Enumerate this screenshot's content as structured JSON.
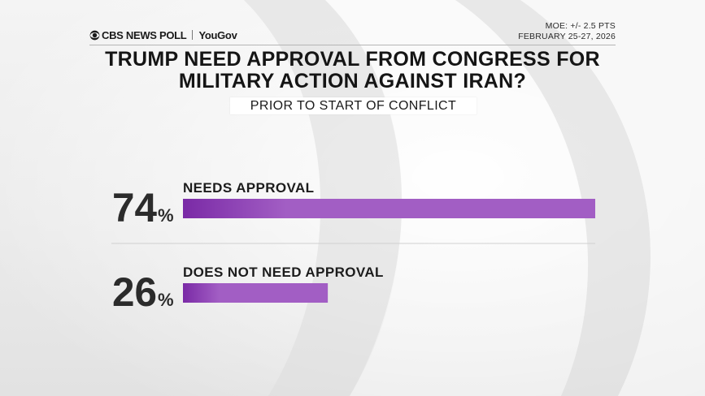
{
  "header": {
    "brand_primary": "CBS NEWS POLL",
    "brand_secondary": "YouGov",
    "moe": "MOE: +/- 2.5 PTS",
    "dates": "FEBRUARY 25-27, 2026"
  },
  "colors": {
    "bar_dark": "#7a2aa6",
    "bar_light": "#a25ec4",
    "text": "#2b2b2b"
  },
  "chart_data": {
    "type": "bar",
    "orientation": "horizontal",
    "title": "TRUMP NEED APPROVAL FROM CONGRESS FOR MILITARY ACTION AGAINST IRAN?",
    "subtitle": "PRIOR TO START OF CONFLICT",
    "categories": [
      "NEEDS APPROVAL",
      "DOES NOT NEED APPROVAL"
    ],
    "values": [
      74,
      26
    ],
    "unit": "%",
    "xlim": [
      0,
      74
    ],
    "grid": false,
    "legend": "none"
  }
}
